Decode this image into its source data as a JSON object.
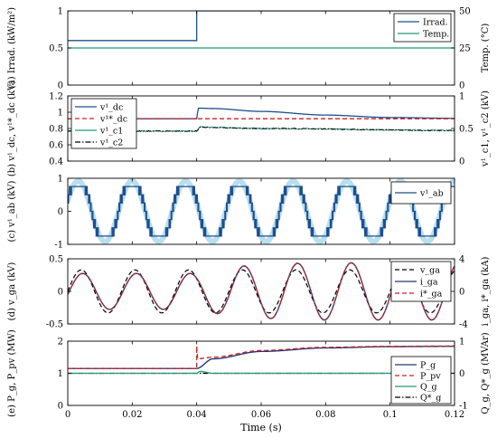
{
  "chart_data": [
    {
      "type": "line",
      "panel": "(a)",
      "ylabel_left": "(a) Irrad. (kW/m²)",
      "ylabel_right": "Temp. (°C)",
      "ylim_left": [
        0,
        1
      ],
      "ylim_right": [
        0,
        50
      ],
      "yticks_left": [
        "0",
        "0.5",
        "1"
      ],
      "yticks_right": [
        "0",
        "25",
        "50"
      ],
      "legend_position": "top-right",
      "series": [
        {
          "name": "Irrad.",
          "color": "#1f4e8c",
          "axis": "left",
          "x": [
            0,
            0.04,
            0.04,
            0.12
          ],
          "y": [
            0.6,
            0.6,
            1.0,
            1.0
          ]
        },
        {
          "name": "Temp.",
          "color": "#1e9a7a",
          "axis": "right",
          "x": [
            0,
            0.12
          ],
          "y": [
            25,
            25
          ]
        }
      ]
    },
    {
      "type": "line",
      "panel": "(b)",
      "ylabel_left": "(b) v¹_dc, v¹*_dc (kV)",
      "ylabel_right": "v¹_c1, v¹_c2 (kV)",
      "ylim_left": [
        0.4,
        1.2
      ],
      "ylim_right": [
        0,
        1
      ],
      "yticks_left": [
        "0.4",
        "0.6",
        "0.8",
        "1",
        "1.2"
      ],
      "yticks_right": [
        "0",
        "0.5",
        "1"
      ],
      "legend_position": "top-left",
      "series": [
        {
          "name": "v¹_dc",
          "color": "#1f4e8c",
          "x": [
            0,
            0.04,
            0.0405,
            0.045,
            0.06,
            0.08,
            0.1,
            0.12
          ],
          "y": [
            0.92,
            0.92,
            1.05,
            1.045,
            1.01,
            0.965,
            0.935,
            0.925
          ]
        },
        {
          "name": "v¹*_dc",
          "color": "#cc2222",
          "dash": "dashed",
          "x": [
            0,
            0.12
          ],
          "y": [
            0.92,
            0.92
          ]
        },
        {
          "name": "v¹_c1",
          "color": "#1e9a7a",
          "axis": "right",
          "x": [
            0,
            0.04,
            0.041,
            0.06,
            0.12
          ],
          "y": [
            0.46,
            0.46,
            0.52,
            0.5,
            0.47
          ]
        },
        {
          "name": "v¹_c2",
          "color": "#000000",
          "dash": "dashdot",
          "axis": "right",
          "x": [
            0,
            0.04,
            0.041,
            0.06,
            0.12
          ],
          "y": [
            0.46,
            0.46,
            0.52,
            0.5,
            0.47
          ]
        }
      ]
    },
    {
      "type": "line",
      "panel": "(c)",
      "ylabel": "(c) v¹_ab (kV)",
      "ylim": [
        -1,
        1
      ],
      "yticks": [
        "-1",
        "0",
        "1"
      ],
      "legend_position": "top-right",
      "fundamental_hz": 60,
      "levels": [
        -0.75,
        -0.5,
        -0.25,
        0,
        0.25,
        0.5,
        0.75
      ],
      "series": [
        {
          "name": "v¹_ab",
          "color": "#1f4e8c"
        }
      ]
    },
    {
      "type": "line",
      "panel": "(d)",
      "ylabel_left": "(d) v_ga (kV)",
      "ylabel_right": "i_ga, i*_ga (kA)",
      "ylim_left": [
        -0.5,
        0.5
      ],
      "ylim_right": [
        -4,
        4
      ],
      "yticks_left": [
        "-0.5",
        "0",
        "0.5"
      ],
      "yticks_right": [
        "-4",
        "0",
        "4"
      ],
      "legend_position": "top-right",
      "frequency_hz": 60,
      "series": [
        {
          "name": "v_ga",
          "color": "#000000",
          "dash": "dashed",
          "amplitude": 0.33,
          "phase_deg": 0
        },
        {
          "name": "i_ga",
          "color": "#1f3a7a",
          "axis": "right",
          "amplitude_before": 2.2,
          "amplitude_after": 3.5,
          "phase_deg": -10
        },
        {
          "name": "i*_ga",
          "color": "#cc2222",
          "dash": "dashed",
          "axis": "right",
          "amplitude_before": 2.2,
          "amplitude_after": 3.5,
          "phase_deg": -10
        }
      ]
    },
    {
      "type": "line",
      "panel": "(e)",
      "ylabel_left": "(e) P_g, P_pv (MW)",
      "ylabel_right": "Q_g, Q*_g (MVAr)",
      "ylim_left": [
        0,
        2
      ],
      "ylim_right": [
        -1,
        1
      ],
      "yticks_left": [
        "0",
        "1",
        "2"
      ],
      "yticks_right": [
        "-1",
        "0",
        "1"
      ],
      "xlim": [
        0,
        0.12
      ],
      "xticks": [
        "0",
        "0.02",
        "0.04",
        "0.06",
        "0.08",
        "0.1",
        "0.12"
      ],
      "xlabel": "Time (s)",
      "legend_position": "bottom-right",
      "series": [
        {
          "name": "P_g",
          "color": "#1f3a7a",
          "x": [
            0,
            0.04,
            0.045,
            0.06,
            0.08,
            0.1,
            0.12
          ],
          "y": [
            1.15,
            1.15,
            1.45,
            1.68,
            1.79,
            1.83,
            1.84
          ]
        },
        {
          "name": "P_pv",
          "color": "#cc2222",
          "dash": "dashed",
          "x": [
            0,
            0.04,
            0.04,
            0.0401,
            0.045,
            0.06,
            0.08,
            0.1,
            0.12
          ],
          "y": [
            1.15,
            1.15,
            1.85,
            1.45,
            1.5,
            1.71,
            1.81,
            1.84,
            1.85
          ]
        },
        {
          "name": "Q_g",
          "color": "#1e9a7a",
          "axis": "right",
          "x": [
            0,
            0.04,
            0.041,
            0.045,
            0.12
          ],
          "y": [
            0,
            0,
            0.06,
            0,
            0
          ]
        },
        {
          "name": "Q*_g",
          "color": "#000000",
          "dash": "dashdot",
          "axis": "right",
          "x": [
            0,
            0.12
          ],
          "y": [
            0,
            0
          ]
        }
      ]
    }
  ]
}
